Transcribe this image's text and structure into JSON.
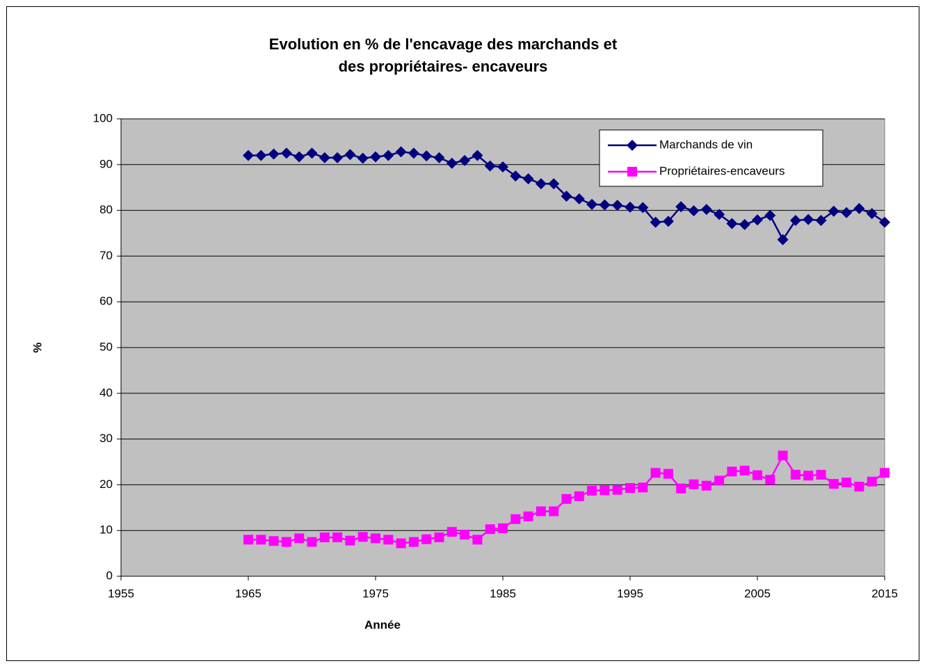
{
  "chart_data": {
    "type": "line",
    "title": "Evolution en % de l'encavage des marchands et",
    "title_line2": "des propriétaires- encaveurs",
    "x_label": "Année",
    "y_label": "%",
    "x": [
      1965,
      1966,
      1967,
      1968,
      1969,
      1970,
      1971,
      1972,
      1973,
      1974,
      1975,
      1976,
      1977,
      1978,
      1979,
      1980,
      1981,
      1982,
      1983,
      1984,
      1985,
      1986,
      1987,
      1988,
      1989,
      1990,
      1991,
      1992,
      1993,
      1994,
      1995,
      1996,
      1997,
      1998,
      1999,
      2000,
      2001,
      2002,
      2003,
      2004,
      2005,
      2006,
      2007,
      2008,
      2009,
      2010,
      2011,
      2012,
      2013,
      2014,
      2015
    ],
    "series": [
      {
        "name": "Marchands de vin",
        "color": "#000080",
        "marker": "diamond",
        "values": [
          92,
          92,
          92.3,
          92.5,
          91.7,
          92.5,
          91.5,
          91.5,
          92.2,
          91.4,
          91.7,
          92,
          92.8,
          92.5,
          91.9,
          91.5,
          90.3,
          90.9,
          92,
          89.7,
          89.5,
          87.5,
          86.9,
          85.8,
          85.8,
          83.1,
          82.5,
          81.3,
          81.2,
          81.1,
          80.7,
          80.6,
          77.4,
          77.6,
          80.8,
          79.9,
          80.2,
          79.1,
          77.1,
          76.9,
          77.9,
          78.9,
          73.6,
          77.8,
          78,
          77.8,
          79.8,
          79.5,
          80.4,
          79.3,
          77.4
        ]
      },
      {
        "name": "Propriétaires-encaveurs",
        "color": "#ff00ff",
        "marker": "square",
        "values": [
          8,
          8,
          7.7,
          7.5,
          8.3,
          7.5,
          8.5,
          8.5,
          7.8,
          8.6,
          8.3,
          8,
          7.2,
          7.5,
          8.1,
          8.5,
          9.7,
          9.1,
          8,
          10.3,
          10.5,
          12.5,
          13.1,
          14.2,
          14.2,
          16.9,
          17.5,
          18.7,
          18.8,
          18.9,
          19.3,
          19.4,
          22.6,
          22.4,
          19.2,
          20.1,
          19.8,
          20.9,
          22.9,
          23.1,
          22.1,
          21.1,
          26.4,
          22.2,
          22,
          22.2,
          20.2,
          20.5,
          19.6,
          20.7,
          22.6
        ]
      }
    ],
    "xlim": [
      1955,
      2015
    ],
    "xticks": [
      1955,
      1965,
      1975,
      1985,
      1995,
      2005,
      2015
    ],
    "ylim": [
      0,
      100
    ],
    "yticks": [
      0,
      10,
      20,
      30,
      40,
      50,
      60,
      70,
      80,
      90,
      100
    ],
    "grid": true,
    "legend": "top-right",
    "plot_background": "#c0c0c0"
  }
}
